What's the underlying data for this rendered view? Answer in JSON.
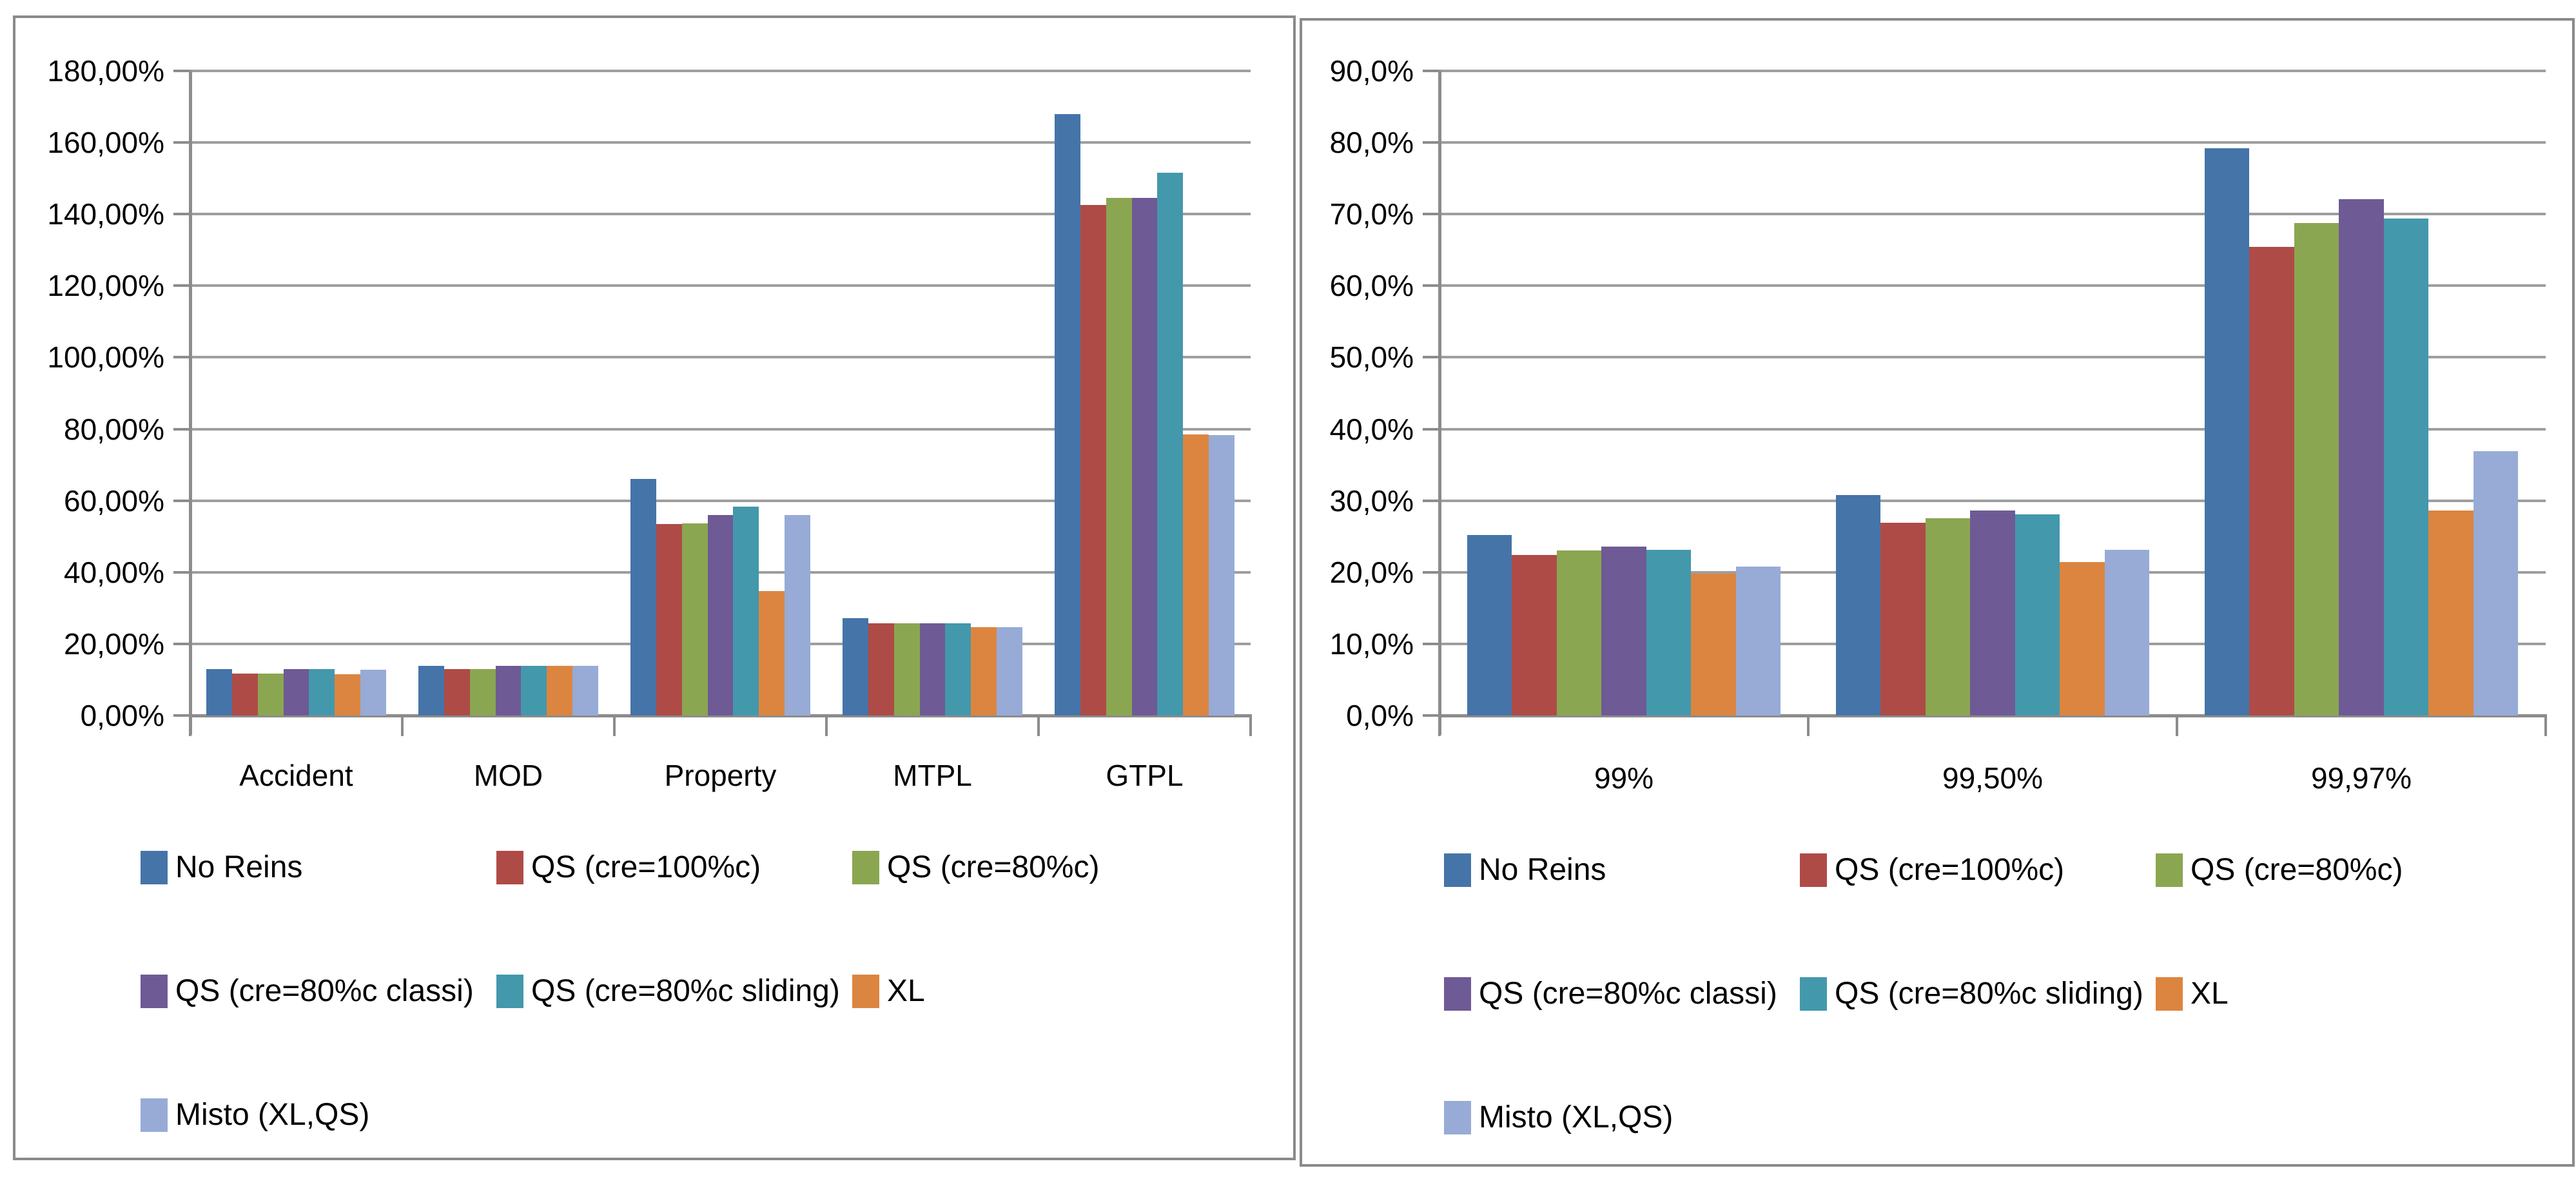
{
  "palette": {
    "panel_border": "#8a8a8a",
    "gridline": "#9e9e9e",
    "axis": "#8c8c8c",
    "text": "#000000",
    "background": "#ffffff"
  },
  "legend": {
    "entries": [
      "No Reins",
      "QS (cre=100%c)",
      "QS (cre=80%c)",
      "QS (cre=80%c classi)",
      "QS (cre=80%c sliding)",
      "XL",
      "Misto (XL,QS)"
    ]
  },
  "chart_data": [
    {
      "type": "bar",
      "title": "",
      "xlabel": "",
      "ylabel": "",
      "grid": true,
      "legend_position": "bottom",
      "categories": [
        "Accident",
        "MOD",
        "Property",
        "MTPL",
        "GTPL"
      ],
      "y_ticks": [
        "180,00%",
        "160,00%",
        "140,00%",
        "120,00%",
        "100,00%",
        "80,00%",
        "60,00%",
        "40,00%",
        "20,00%",
        "0,00%"
      ],
      "ylim": [
        0,
        180
      ],
      "y_step": 20,
      "series": [
        {
          "name": "No Reins",
          "color": "#4574a9",
          "values": [
            12.9,
            13.9,
            66.0,
            27.1,
            168.0
          ]
        },
        {
          "name": "QS (cre=100%c)",
          "color": "#ae4b47",
          "values": [
            11.7,
            12.9,
            53.5,
            25.8,
            142.5
          ]
        },
        {
          "name": "QS (cre=80%c)",
          "color": "#8ba650",
          "values": [
            11.7,
            12.9,
            53.7,
            25.8,
            144.5
          ]
        },
        {
          "name": "QS (cre=80%c classi)",
          "color": "#6e5a95",
          "values": [
            12.9,
            13.9,
            56.0,
            25.8,
            144.5
          ]
        },
        {
          "name": "QS (cre=80%c sliding)",
          "color": "#4398ac",
          "values": [
            12.9,
            13.9,
            58.3,
            25.8,
            151.5
          ]
        },
        {
          "name": "XL",
          "color": "#dc8540",
          "values": [
            11.5,
            13.9,
            34.8,
            24.6,
            78.5
          ]
        },
        {
          "name": "Misto (XL,QS)",
          "color": "#97abd6",
          "values": [
            12.7,
            13.9,
            56.0,
            24.6,
            78.3
          ]
        }
      ]
    },
    {
      "type": "bar",
      "title": "",
      "xlabel": "",
      "ylabel": "",
      "grid": true,
      "legend_position": "bottom",
      "categories": [
        "99%",
        "99,50%",
        "99,97%"
      ],
      "y_ticks": [
        "90,0%",
        "80,0%",
        "70,0%",
        "60,0%",
        "50,0%",
        "40,0%",
        "30,0%",
        "20,0%",
        "10,0%",
        "0,0%"
      ],
      "ylim": [
        0,
        90
      ],
      "y_step": 10,
      "series": [
        {
          "name": "No Reins",
          "color": "#4574a9",
          "values": [
            25.2,
            30.8,
            79.2
          ]
        },
        {
          "name": "QS (cre=100%c)",
          "color": "#ae4b47",
          "values": [
            22.4,
            26.9,
            65.4
          ]
        },
        {
          "name": "QS (cre=80%c)",
          "color": "#8ba650",
          "values": [
            23.0,
            27.5,
            68.8
          ]
        },
        {
          "name": "QS (cre=80%c classi)",
          "color": "#6e5a95",
          "values": [
            23.6,
            28.6,
            72.1
          ]
        },
        {
          "name": "QS (cre=80%c sliding)",
          "color": "#4398ac",
          "values": [
            23.1,
            28.1,
            69.4
          ]
        },
        {
          "name": "XL",
          "color": "#dc8540",
          "values": [
            19.8,
            21.4,
            28.6
          ]
        },
        {
          "name": "Misto (XL,QS)",
          "color": "#97abd6",
          "values": [
            20.8,
            23.1,
            36.9
          ]
        }
      ]
    }
  ]
}
